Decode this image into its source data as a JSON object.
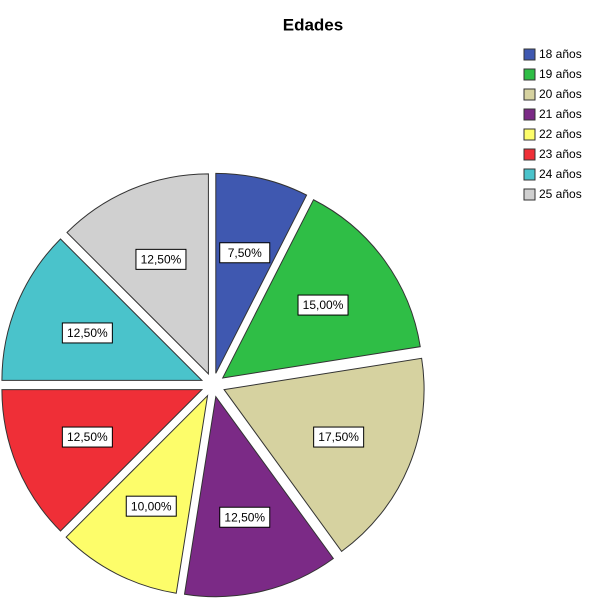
{
  "chart_data": {
    "type": "pie",
    "title": "Edades",
    "categories": [
      "18 años",
      "19 años",
      "20 años",
      "21 años",
      "22 años",
      "23 años",
      "24 años",
      "25 años"
    ],
    "values": [
      7.5,
      15,
      17.5,
      12.5,
      10,
      12.5,
      12.5,
      12.5
    ],
    "value_labels": [
      "7,50%",
      "15,00%",
      "17,50%",
      "12,50%",
      "10,00%",
      "12,50%",
      "12,50%",
      "12,50%"
    ],
    "colors": [
      "#3f58b0",
      "#2fbe46",
      "#d6d2a0",
      "#7b2a86",
      "#fdfd6a",
      "#ef2f37",
      "#4ac3cb",
      "#d0d0d0"
    ]
  }
}
